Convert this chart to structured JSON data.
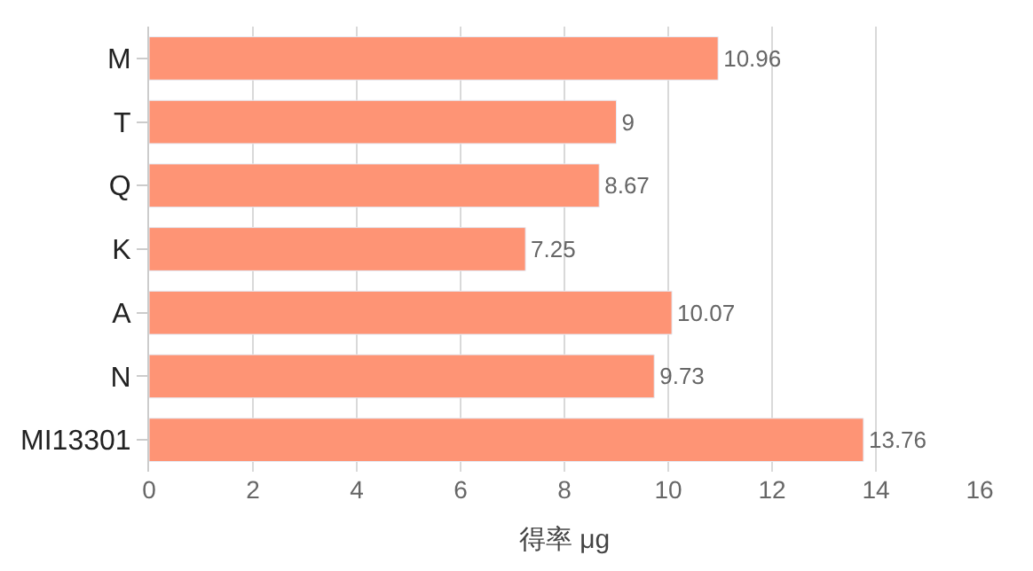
{
  "chart_data": {
    "type": "bar",
    "orientation": "horizontal",
    "xlabel": "得率 μg",
    "categories": [
      "M",
      "T",
      "Q",
      "K",
      "A",
      "N",
      "MI13301"
    ],
    "values": [
      10.96,
      9,
      8.67,
      7.25,
      10.07,
      9.73,
      13.76
    ],
    "color": "#fe9475",
    "xlim": [
      0,
      16
    ],
    "xticks": [
      0,
      2,
      4,
      6,
      8,
      10,
      12,
      14,
      16
    ],
    "grid": "x",
    "data_labels": true
  }
}
